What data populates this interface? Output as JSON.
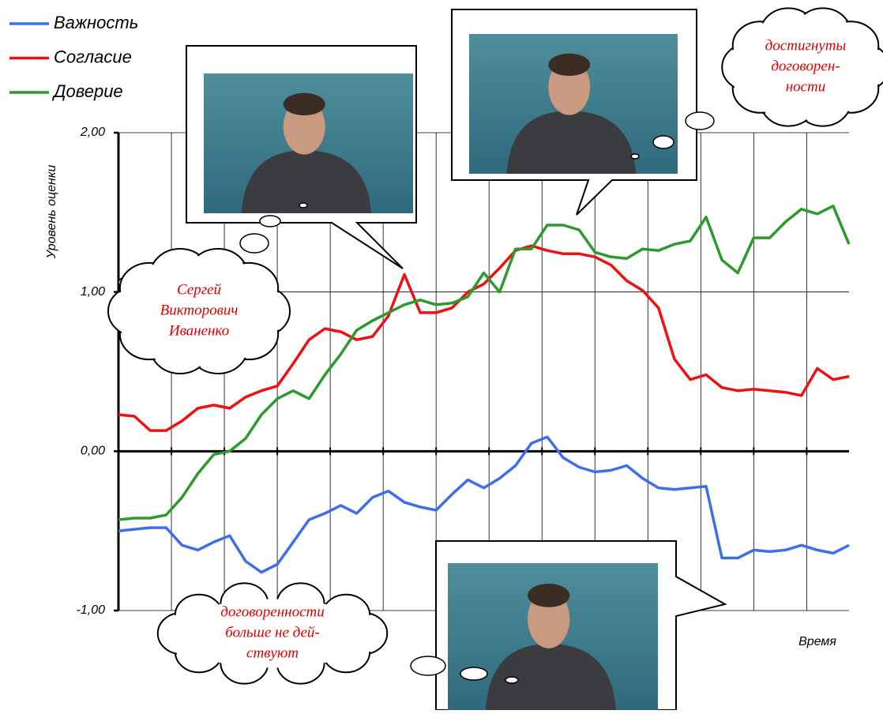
{
  "chart_data": {
    "type": "line",
    "x_label": "Время",
    "y_label": "Уровень оценки",
    "categories": [
      null,
      null,
      null,
      null,
      null,
      null,
      null,
      null,
      null,
      null,
      null,
      null,
      null,
      null,
      null,
      null,
      null,
      null,
      null,
      null,
      null,
      null,
      null,
      null,
      null,
      null,
      null,
      null,
      null,
      null,
      null,
      null,
      null,
      null,
      null,
      null,
      null,
      null,
      null,
      null,
      null,
      null,
      null,
      null,
      null,
      null,
      null
    ],
    "ylim": [
      -1,
      2
    ],
    "yticks": [
      {
        "value": -1,
        "label": "-1,00"
      },
      {
        "value": 0,
        "label": "0,00"
      },
      {
        "value": 1,
        "label": "1,00"
      },
      {
        "value": 2,
        "label": "2,00"
      }
    ],
    "grid": true,
    "legend": "top-left",
    "series": [
      {
        "name": "Важность",
        "color": "#3f6fe8",
        "values": [
          -0.5,
          -0.49,
          -0.48,
          -0.48,
          -0.59,
          -0.62,
          -0.57,
          -0.53,
          -0.69,
          -0.76,
          -0.71,
          -0.57,
          -0.43,
          -0.39,
          -0.34,
          -0.39,
          -0.29,
          -0.25,
          -0.32,
          -0.35,
          -0.37,
          -0.27,
          -0.18,
          -0.23,
          -0.17,
          -0.09,
          0.05,
          0.09,
          -0.04,
          -0.1,
          -0.13,
          -0.12,
          -0.09,
          -0.17,
          -0.23,
          -0.24,
          -0.23,
          -0.22,
          -0.67,
          -0.67,
          -0.62,
          -0.63,
          -0.62,
          -0.59,
          -0.62,
          -0.64,
          -0.59
        ]
      },
      {
        "name": "Согласие",
        "color": "#ee1111",
        "values": [
          0.23,
          0.22,
          0.13,
          0.13,
          0.19,
          0.27,
          0.29,
          0.27,
          0.34,
          0.38,
          0.41,
          0.55,
          0.7,
          0.77,
          0.75,
          0.7,
          0.72,
          0.85,
          1.11,
          0.87,
          0.87,
          0.9,
          1.0,
          1.05,
          1.15,
          1.26,
          1.29,
          1.26,
          1.24,
          1.24,
          1.22,
          1.17,
          1.07,
          1.01,
          0.9,
          0.58,
          0.45,
          0.48,
          0.4,
          0.38,
          0.39,
          0.38,
          0.37,
          0.35,
          0.52,
          0.45,
          0.47
        ]
      },
      {
        "name": "Доверие",
        "color": "#2e9a2e",
        "values": [
          -0.43,
          -0.42,
          -0.42,
          -0.4,
          -0.29,
          -0.14,
          -0.02,
          0.0,
          0.08,
          0.23,
          0.33,
          0.38,
          0.33,
          0.48,
          0.61,
          0.76,
          0.82,
          0.87,
          0.92,
          0.95,
          0.92,
          0.93,
          0.97,
          1.12,
          1.0,
          1.27,
          1.27,
          1.42,
          1.42,
          1.39,
          1.25,
          1.22,
          1.21,
          1.27,
          1.26,
          1.3,
          1.32,
          1.47,
          1.2,
          1.12,
          1.34,
          1.34,
          1.44,
          1.52,
          1.49,
          1.54,
          1.3
        ]
      }
    ],
    "annotations": [
      {
        "lines": [
          "Сергей",
          "Викторович",
          "Иваненко"
        ]
      },
      {
        "lines": [
          "достигнуты",
          "договорен-",
          "ности"
        ]
      },
      {
        "lines": [
          "договоренности",
          "больше не дей-",
          "ствуют"
        ]
      }
    ]
  }
}
